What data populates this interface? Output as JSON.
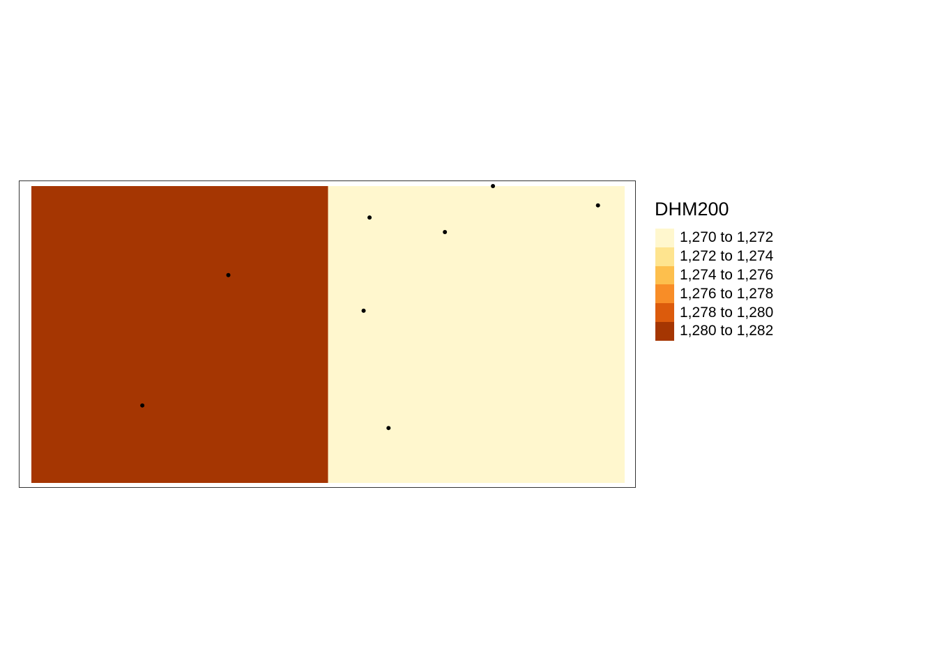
{
  "legend": {
    "title": "DHM200",
    "items": [
      {
        "label": "1,270 to 1,272",
        "color": "#FFF7CE"
      },
      {
        "label": "1,272 to 1,274",
        "color": "#FEE48F"
      },
      {
        "label": "1,274 to 1,276",
        "color": "#FDBF4D"
      },
      {
        "label": "1,276 to 1,278",
        "color": "#F88D27"
      },
      {
        "label": "1,278 to 1,280",
        "color": "#DC5B0C"
      },
      {
        "label": "1,280 to 1,282",
        "color": "#A53602"
      }
    ]
  },
  "raster": {
    "columns": 2,
    "rows": 1,
    "cells": [
      {
        "col": 0,
        "row": 0,
        "class_index": 5
      },
      {
        "col": 1,
        "row": 0,
        "class_index": 0
      }
    ]
  },
  "points": {
    "color": "#000000",
    "items": [
      {
        "u": 0.778,
        "v": 0.0
      },
      {
        "u": 0.955,
        "v": 0.065
      },
      {
        "u": 0.57,
        "v": 0.106
      },
      {
        "u": 0.697,
        "v": 0.155
      },
      {
        "u": 0.332,
        "v": 0.3
      },
      {
        "u": 0.56,
        "v": 0.42
      },
      {
        "u": 0.187,
        "v": 0.739
      },
      {
        "u": 0.602,
        "v": 0.815
      }
    ]
  }
}
